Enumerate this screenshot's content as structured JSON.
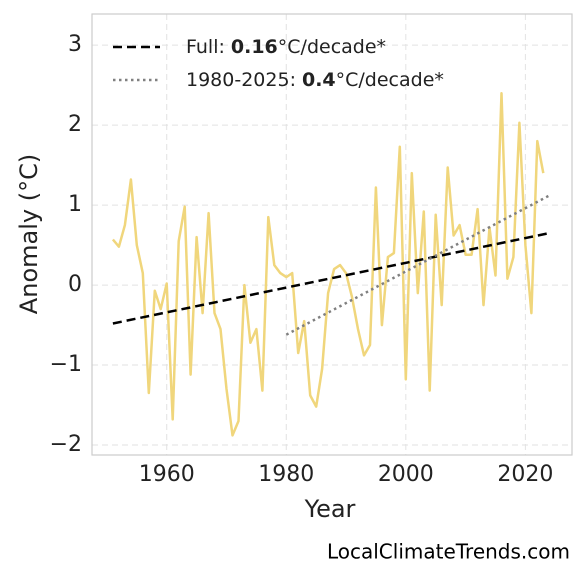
{
  "chart_data": {
    "type": "line",
    "x_label": "Year",
    "y_label": "Anomaly (°C)",
    "footer": "LocalClimateTrends.com",
    "x": [
      1951,
      1952,
      1953,
      1954,
      1955,
      1956,
      1957,
      1958,
      1959,
      1960,
      1961,
      1962,
      1963,
      1964,
      1965,
      1966,
      1967,
      1968,
      1969,
      1970,
      1971,
      1972,
      1973,
      1974,
      1975,
      1976,
      1977,
      1978,
      1979,
      1980,
      1981,
      1982,
      1983,
      1984,
      1985,
      1986,
      1987,
      1988,
      1989,
      1990,
      1991,
      1992,
      1993,
      1994,
      1995,
      1996,
      1997,
      1998,
      1999,
      2000,
      2001,
      2002,
      2003,
      2004,
      2005,
      2006,
      2007,
      2008,
      2009,
      2010,
      2011,
      2012,
      2013,
      2014,
      2015,
      2016,
      2017,
      2018,
      2019,
      2020,
      2021,
      2022,
      2023
    ],
    "values": [
      0.57,
      0.48,
      0.75,
      1.32,
      0.5,
      0.15,
      -1.35,
      -0.07,
      -0.3,
      0.02,
      -1.68,
      0.55,
      0.98,
      -1.12,
      0.6,
      -0.35,
      0.9,
      -0.35,
      -0.55,
      -1.3,
      -1.88,
      -1.7,
      0.0,
      -0.72,
      -0.55,
      -1.32,
      0.85,
      0.25,
      0.15,
      0.1,
      0.15,
      -0.85,
      -0.45,
      -1.38,
      -1.52,
      -1.05,
      -0.1,
      0.2,
      0.25,
      0.15,
      -0.15,
      -0.55,
      -0.88,
      -0.75,
      1.22,
      -0.5,
      0.35,
      0.4,
      1.73,
      -1.18,
      1.4,
      -0.1,
      0.92,
      -1.32,
      0.88,
      -0.25,
      1.47,
      0.62,
      0.75,
      0.38,
      0.38,
      0.95,
      -0.25,
      0.72,
      0.12,
      2.4,
      0.08,
      0.35,
      2.03,
      0.5,
      -0.35,
      1.8,
      1.4
    ],
    "color": "#f0d67c",
    "trends": [
      {
        "label": "Full:",
        "rate": 0.16,
        "unit": "°C/decade*",
        "color": "#000000",
        "style": "dashed",
        "x": [
          1951,
          2024
        ],
        "values": [
          -0.48,
          0.65
        ]
      },
      {
        "label": "1980-2025:",
        "rate": 0.4,
        "unit": "°C/decade*",
        "color": "#808080",
        "style": "dotted",
        "x": [
          1980,
          2024
        ],
        "values": [
          -0.62,
          1.12
        ]
      }
    ],
    "xlim": [
      1947.5,
      2027.8
    ],
    "ylim": [
      -2.125,
      3.39
    ],
    "xticks": [
      1960,
      1980,
      2000,
      2020
    ],
    "yticks": [
      {
        "value": -2,
        "label": "−2"
      },
      {
        "value": -1,
        "label": "−1"
      },
      0,
      1,
      2,
      3
    ],
    "grid": true,
    "legend": "upper left"
  }
}
